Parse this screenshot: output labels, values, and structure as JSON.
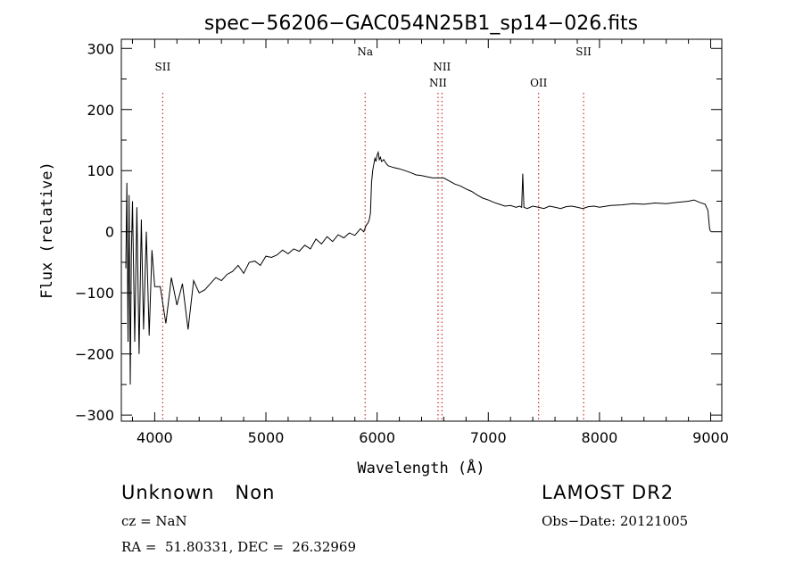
{
  "chart_data": {
    "type": "line",
    "title": "spec−56206−GAC054N25B1_sp14−026.fits",
    "xlabel": "Wavelength (Å)",
    "ylabel": "Flux (relative)",
    "xlim": [
      3700,
      9100
    ],
    "ylim": [
      -310,
      315
    ],
    "x_ticks": [
      4000,
      5000,
      6000,
      7000,
      8000,
      9000
    ],
    "y_ticks": [
      -300,
      -200,
      -100,
      0,
      100,
      200,
      300
    ],
    "y_tick_labels": [
      "−300",
      "−200",
      "−100",
      "0",
      "100",
      "200",
      "300"
    ],
    "grid": false,
    "line_color": "#000000",
    "marker_color": "#cc0000",
    "series": [
      {
        "x": [
          3740,
          3750,
          3760,
          3770,
          3780,
          3790,
          3800,
          3820,
          3840,
          3860,
          3880,
          3900,
          3925,
          3950,
          3975,
          4000,
          4050,
          4100,
          4150,
          4200,
          4250,
          4300,
          4350,
          4400,
          4450,
          4500,
          4550,
          4600,
          4650,
          4700,
          4750,
          4800,
          4850,
          4900,
          4950,
          5000,
          5050,
          5100,
          5150,
          5200,
          5250,
          5300,
          5350,
          5400,
          5450,
          5500,
          5550,
          5600,
          5650,
          5700,
          5750,
          5800,
          5850,
          5880,
          5900,
          5920,
          5930,
          5940,
          5950,
          5960,
          5970,
          5980,
          5990,
          6000,
          6010,
          6020,
          6030,
          6040,
          6060,
          6080,
          6100,
          6150,
          6200,
          6250,
          6300,
          6350,
          6400,
          6450,
          6500,
          6550,
          6600,
          6650,
          6700,
          6750,
          6800,
          6850,
          6900,
          6950,
          7000,
          7050,
          7100,
          7150,
          7200,
          7250,
          7280,
          7300,
          7310,
          7320,
          7350,
          7400,
          7450,
          7500,
          7550,
          7600,
          7650,
          7700,
          7750,
          7800,
          7850,
          7900,
          7950,
          8000,
          8100,
          8200,
          8300,
          8400,
          8500,
          8600,
          8700,
          8800,
          8850,
          8900,
          8950,
          8975,
          8990,
          9000
        ],
        "y": [
          -60,
          80,
          -180,
          60,
          -250,
          -40,
          50,
          -180,
          40,
          -200,
          20,
          -160,
          0,
          -170,
          -30,
          -90,
          -90,
          -150,
          -75,
          -120,
          -85,
          -160,
          -80,
          -100,
          -95,
          -85,
          -75,
          -80,
          -70,
          -65,
          -55,
          -68,
          -50,
          -48,
          -55,
          -40,
          -42,
          -38,
          -30,
          -36,
          -28,
          -32,
          -22,
          -28,
          -12,
          -20,
          -8,
          -16,
          -5,
          -10,
          -2,
          -6,
          5,
          0,
          10,
          15,
          20,
          30,
          80,
          100,
          110,
          120,
          115,
          125,
          130,
          118,
          122,
          115,
          118,
          112,
          108,
          105,
          103,
          100,
          97,
          93,
          92,
          90,
          88,
          88,
          88,
          83,
          78,
          75,
          70,
          66,
          60,
          55,
          52,
          48,
          45,
          42,
          43,
          40,
          42,
          40,
          95,
          40,
          38,
          42,
          40,
          38,
          42,
          40,
          38,
          41,
          42,
          40,
          38,
          41,
          42,
          40,
          43,
          44,
          46,
          45,
          47,
          46,
          48,
          50,
          52,
          48,
          45,
          35,
          5,
          0
        ]
      }
    ],
    "lines": [
      {
        "x": 4072,
        "label": "SII",
        "label_row": 1
      },
      {
        "x": 5892,
        "label": "Na",
        "label_row": 0
      },
      {
        "x": 6548,
        "label": "NII",
        "label_row": 2
      },
      {
        "x": 6583,
        "label": "NII",
        "label_row": 1
      },
      {
        "x": 7453,
        "label": "OII",
        "label_row": 2
      },
      {
        "x": 7857,
        "label": "SII",
        "label_row": 0
      }
    ]
  },
  "info": {
    "class_line": "Unknown   Non",
    "cz_line": "cz = NaN",
    "radec_line": "RA =  51.80331, DEC =  26.32969",
    "survey": "LAMOST DR2",
    "obs_date_line": "Obs−Date: 20121005"
  }
}
